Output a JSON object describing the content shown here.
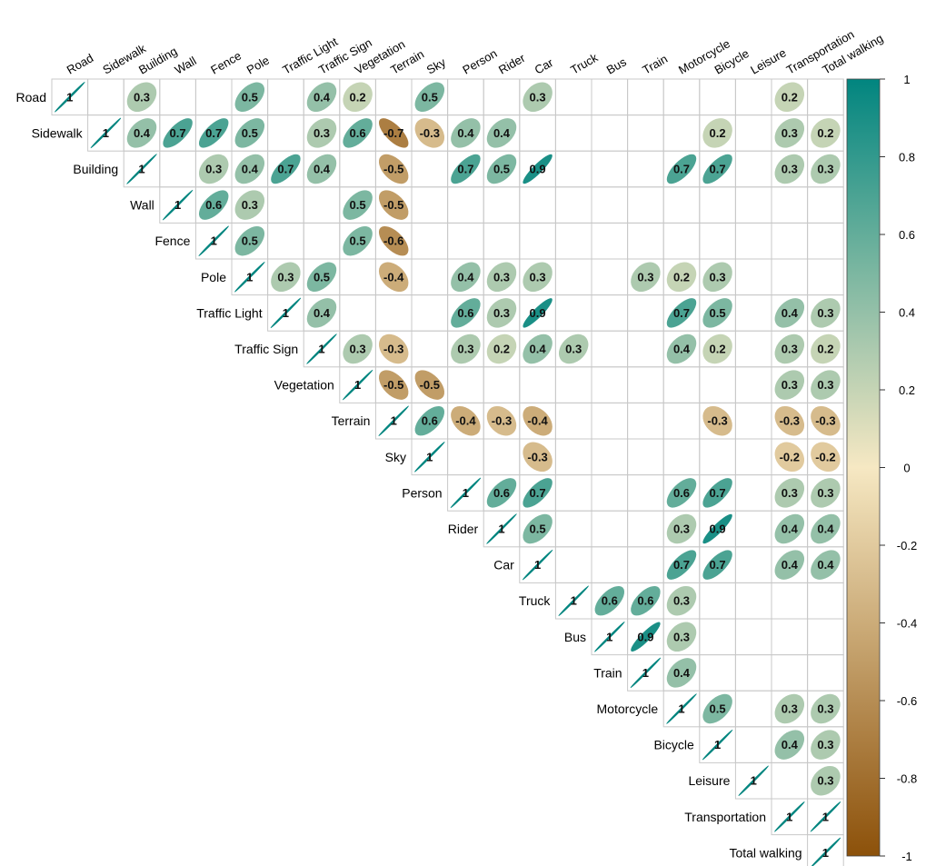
{
  "chart_data": {
    "type": "heatmap",
    "subtype": "correlation-matrix-upper-ellipse",
    "variables": [
      "Road",
      "Sidewalk",
      "Building",
      "Wall",
      "Fence",
      "Pole",
      "Traffic Light",
      "Traffic Sign",
      "Vegetation",
      "Terrain",
      "Sky",
      "Person",
      "Rider",
      "Car",
      "Truck",
      "Bus",
      "Train",
      "Motorcycle",
      "Bicycle",
      "Leisure",
      "Transportation",
      "Total walking"
    ],
    "cells": [
      {
        "r": 0,
        "c": 0,
        "v": 1
      },
      {
        "r": 0,
        "c": 2,
        "v": 0.3
      },
      {
        "r": 0,
        "c": 5,
        "v": 0.5
      },
      {
        "r": 0,
        "c": 7,
        "v": 0.4
      },
      {
        "r": 0,
        "c": 8,
        "v": 0.2
      },
      {
        "r": 0,
        "c": 10,
        "v": 0.5
      },
      {
        "r": 0,
        "c": 13,
        "v": 0.3
      },
      {
        "r": 0,
        "c": 20,
        "v": 0.2
      },
      {
        "r": 1,
        "c": 1,
        "v": 1
      },
      {
        "r": 1,
        "c": 2,
        "v": 0.4
      },
      {
        "r": 1,
        "c": 3,
        "v": 0.7
      },
      {
        "r": 1,
        "c": 4,
        "v": 0.7
      },
      {
        "r": 1,
        "c": 5,
        "v": 0.5
      },
      {
        "r": 1,
        "c": 7,
        "v": 0.3
      },
      {
        "r": 1,
        "c": 8,
        "v": 0.6
      },
      {
        "r": 1,
        "c": 9,
        "v": -0.7
      },
      {
        "r": 1,
        "c": 10,
        "v": -0.3
      },
      {
        "r": 1,
        "c": 11,
        "v": 0.4
      },
      {
        "r": 1,
        "c": 12,
        "v": 0.4
      },
      {
        "r": 1,
        "c": 18,
        "v": 0.2
      },
      {
        "r": 1,
        "c": 20,
        "v": 0.3
      },
      {
        "r": 1,
        "c": 21,
        "v": 0.2
      },
      {
        "r": 2,
        "c": 2,
        "v": 1
      },
      {
        "r": 2,
        "c": 4,
        "v": 0.3
      },
      {
        "r": 2,
        "c": 5,
        "v": 0.4
      },
      {
        "r": 2,
        "c": 6,
        "v": 0.7
      },
      {
        "r": 2,
        "c": 7,
        "v": 0.4
      },
      {
        "r": 2,
        "c": 9,
        "v": -0.5
      },
      {
        "r": 2,
        "c": 11,
        "v": 0.7
      },
      {
        "r": 2,
        "c": 12,
        "v": 0.5
      },
      {
        "r": 2,
        "c": 13,
        "v": 0.9
      },
      {
        "r": 2,
        "c": 17,
        "v": 0.7
      },
      {
        "r": 2,
        "c": 18,
        "v": 0.7
      },
      {
        "r": 2,
        "c": 20,
        "v": 0.3
      },
      {
        "r": 2,
        "c": 21,
        "v": 0.3
      },
      {
        "r": 3,
        "c": 3,
        "v": 1
      },
      {
        "r": 3,
        "c": 4,
        "v": 0.6
      },
      {
        "r": 3,
        "c": 5,
        "v": 0.3
      },
      {
        "r": 3,
        "c": 8,
        "v": 0.5
      },
      {
        "r": 3,
        "c": 9,
        "v": -0.5
      },
      {
        "r": 4,
        "c": 4,
        "v": 1
      },
      {
        "r": 4,
        "c": 5,
        "v": 0.5
      },
      {
        "r": 4,
        "c": 8,
        "v": 0.5
      },
      {
        "r": 4,
        "c": 9,
        "v": -0.6
      },
      {
        "r": 5,
        "c": 5,
        "v": 1
      },
      {
        "r": 5,
        "c": 6,
        "v": 0.3
      },
      {
        "r": 5,
        "c": 7,
        "v": 0.5
      },
      {
        "r": 5,
        "c": 9,
        "v": -0.4
      },
      {
        "r": 5,
        "c": 11,
        "v": 0.4
      },
      {
        "r": 5,
        "c": 12,
        "v": 0.3
      },
      {
        "r": 5,
        "c": 13,
        "v": 0.3
      },
      {
        "r": 5,
        "c": 16,
        "v": 0.3
      },
      {
        "r": 5,
        "c": 17,
        "v": 0.2
      },
      {
        "r": 5,
        "c": 18,
        "v": 0.3
      },
      {
        "r": 6,
        "c": 6,
        "v": 1
      },
      {
        "r": 6,
        "c": 7,
        "v": 0.4
      },
      {
        "r": 6,
        "c": 11,
        "v": 0.6
      },
      {
        "r": 6,
        "c": 12,
        "v": 0.3
      },
      {
        "r": 6,
        "c": 13,
        "v": 0.9
      },
      {
        "r": 6,
        "c": 17,
        "v": 0.7
      },
      {
        "r": 6,
        "c": 18,
        "v": 0.5
      },
      {
        "r": 6,
        "c": 20,
        "v": 0.4
      },
      {
        "r": 6,
        "c": 21,
        "v": 0.3
      },
      {
        "r": 7,
        "c": 7,
        "v": 1
      },
      {
        "r": 7,
        "c": 8,
        "v": 0.3
      },
      {
        "r": 7,
        "c": 9,
        "v": -0.3
      },
      {
        "r": 7,
        "c": 11,
        "v": 0.3
      },
      {
        "r": 7,
        "c": 12,
        "v": 0.2
      },
      {
        "r": 7,
        "c": 13,
        "v": 0.4
      },
      {
        "r": 7,
        "c": 14,
        "v": 0.3
      },
      {
        "r": 7,
        "c": 17,
        "v": 0.4
      },
      {
        "r": 7,
        "c": 18,
        "v": 0.2
      },
      {
        "r": 7,
        "c": 20,
        "v": 0.3
      },
      {
        "r": 7,
        "c": 21,
        "v": 0.2
      },
      {
        "r": 8,
        "c": 8,
        "v": 1
      },
      {
        "r": 8,
        "c": 9,
        "v": -0.5
      },
      {
        "r": 8,
        "c": 10,
        "v": -0.5
      },
      {
        "r": 8,
        "c": 20,
        "v": 0.3
      },
      {
        "r": 8,
        "c": 21,
        "v": 0.3
      },
      {
        "r": 9,
        "c": 9,
        "v": 1
      },
      {
        "r": 9,
        "c": 10,
        "v": 0.6
      },
      {
        "r": 9,
        "c": 11,
        "v": -0.4
      },
      {
        "r": 9,
        "c": 12,
        "v": -0.3
      },
      {
        "r": 9,
        "c": 13,
        "v": -0.4
      },
      {
        "r": 9,
        "c": 18,
        "v": -0.3
      },
      {
        "r": 9,
        "c": 20,
        "v": -0.3
      },
      {
        "r": 9,
        "c": 21,
        "v": -0.3
      },
      {
        "r": 10,
        "c": 10,
        "v": 1
      },
      {
        "r": 10,
        "c": 13,
        "v": -0.3
      },
      {
        "r": 10,
        "c": 20,
        "v": -0.2
      },
      {
        "r": 10,
        "c": 21,
        "v": -0.2
      },
      {
        "r": 11,
        "c": 11,
        "v": 1
      },
      {
        "r": 11,
        "c": 12,
        "v": 0.6
      },
      {
        "r": 11,
        "c": 13,
        "v": 0.7
      },
      {
        "r": 11,
        "c": 17,
        "v": 0.6
      },
      {
        "r": 11,
        "c": 18,
        "v": 0.7
      },
      {
        "r": 11,
        "c": 20,
        "v": 0.3
      },
      {
        "r": 11,
        "c": 21,
        "v": 0.3
      },
      {
        "r": 12,
        "c": 12,
        "v": 1
      },
      {
        "r": 12,
        "c": 13,
        "v": 0.5
      },
      {
        "r": 12,
        "c": 17,
        "v": 0.3
      },
      {
        "r": 12,
        "c": 18,
        "v": 0.9
      },
      {
        "r": 12,
        "c": 20,
        "v": 0.4
      },
      {
        "r": 12,
        "c": 21,
        "v": 0.4
      },
      {
        "r": 13,
        "c": 13,
        "v": 1
      },
      {
        "r": 13,
        "c": 17,
        "v": 0.7
      },
      {
        "r": 13,
        "c": 18,
        "v": 0.7
      },
      {
        "r": 13,
        "c": 20,
        "v": 0.4
      },
      {
        "r": 13,
        "c": 21,
        "v": 0.4
      },
      {
        "r": 14,
        "c": 14,
        "v": 1
      },
      {
        "r": 14,
        "c": 15,
        "v": 0.6
      },
      {
        "r": 14,
        "c": 16,
        "v": 0.6
      },
      {
        "r": 14,
        "c": 17,
        "v": 0.3
      },
      {
        "r": 15,
        "c": 15,
        "v": 1
      },
      {
        "r": 15,
        "c": 16,
        "v": 0.9
      },
      {
        "r": 15,
        "c": 17,
        "v": 0.3
      },
      {
        "r": 16,
        "c": 16,
        "v": 1
      },
      {
        "r": 16,
        "c": 17,
        "v": 0.4
      },
      {
        "r": 17,
        "c": 17,
        "v": 1
      },
      {
        "r": 17,
        "c": 18,
        "v": 0.5
      },
      {
        "r": 17,
        "c": 20,
        "v": 0.3
      },
      {
        "r": 17,
        "c": 21,
        "v": 0.3
      },
      {
        "r": 18,
        "c": 18,
        "v": 1
      },
      {
        "r": 18,
        "c": 20,
        "v": 0.4
      },
      {
        "r": 18,
        "c": 21,
        "v": 0.3
      },
      {
        "r": 19,
        "c": 19,
        "v": 1
      },
      {
        "r": 19,
        "c": 21,
        "v": 0.3
      },
      {
        "r": 20,
        "c": 20,
        "v": 1
      },
      {
        "r": 20,
        "c": 21,
        "v": 1
      },
      {
        "r": 21,
        "c": 21,
        "v": 1
      }
    ],
    "colorbar": {
      "ticks": [
        "1",
        "0.8",
        "0.6",
        "0.4",
        "0.2",
        "0",
        "-0.2",
        "-0.4",
        "-0.6",
        "-0.8",
        "-1"
      ],
      "range": [
        -1,
        1
      ],
      "colors": {
        "negative": "#8c510a",
        "neutral": "#f6e8c3",
        "positive": "#01857f"
      }
    }
  }
}
